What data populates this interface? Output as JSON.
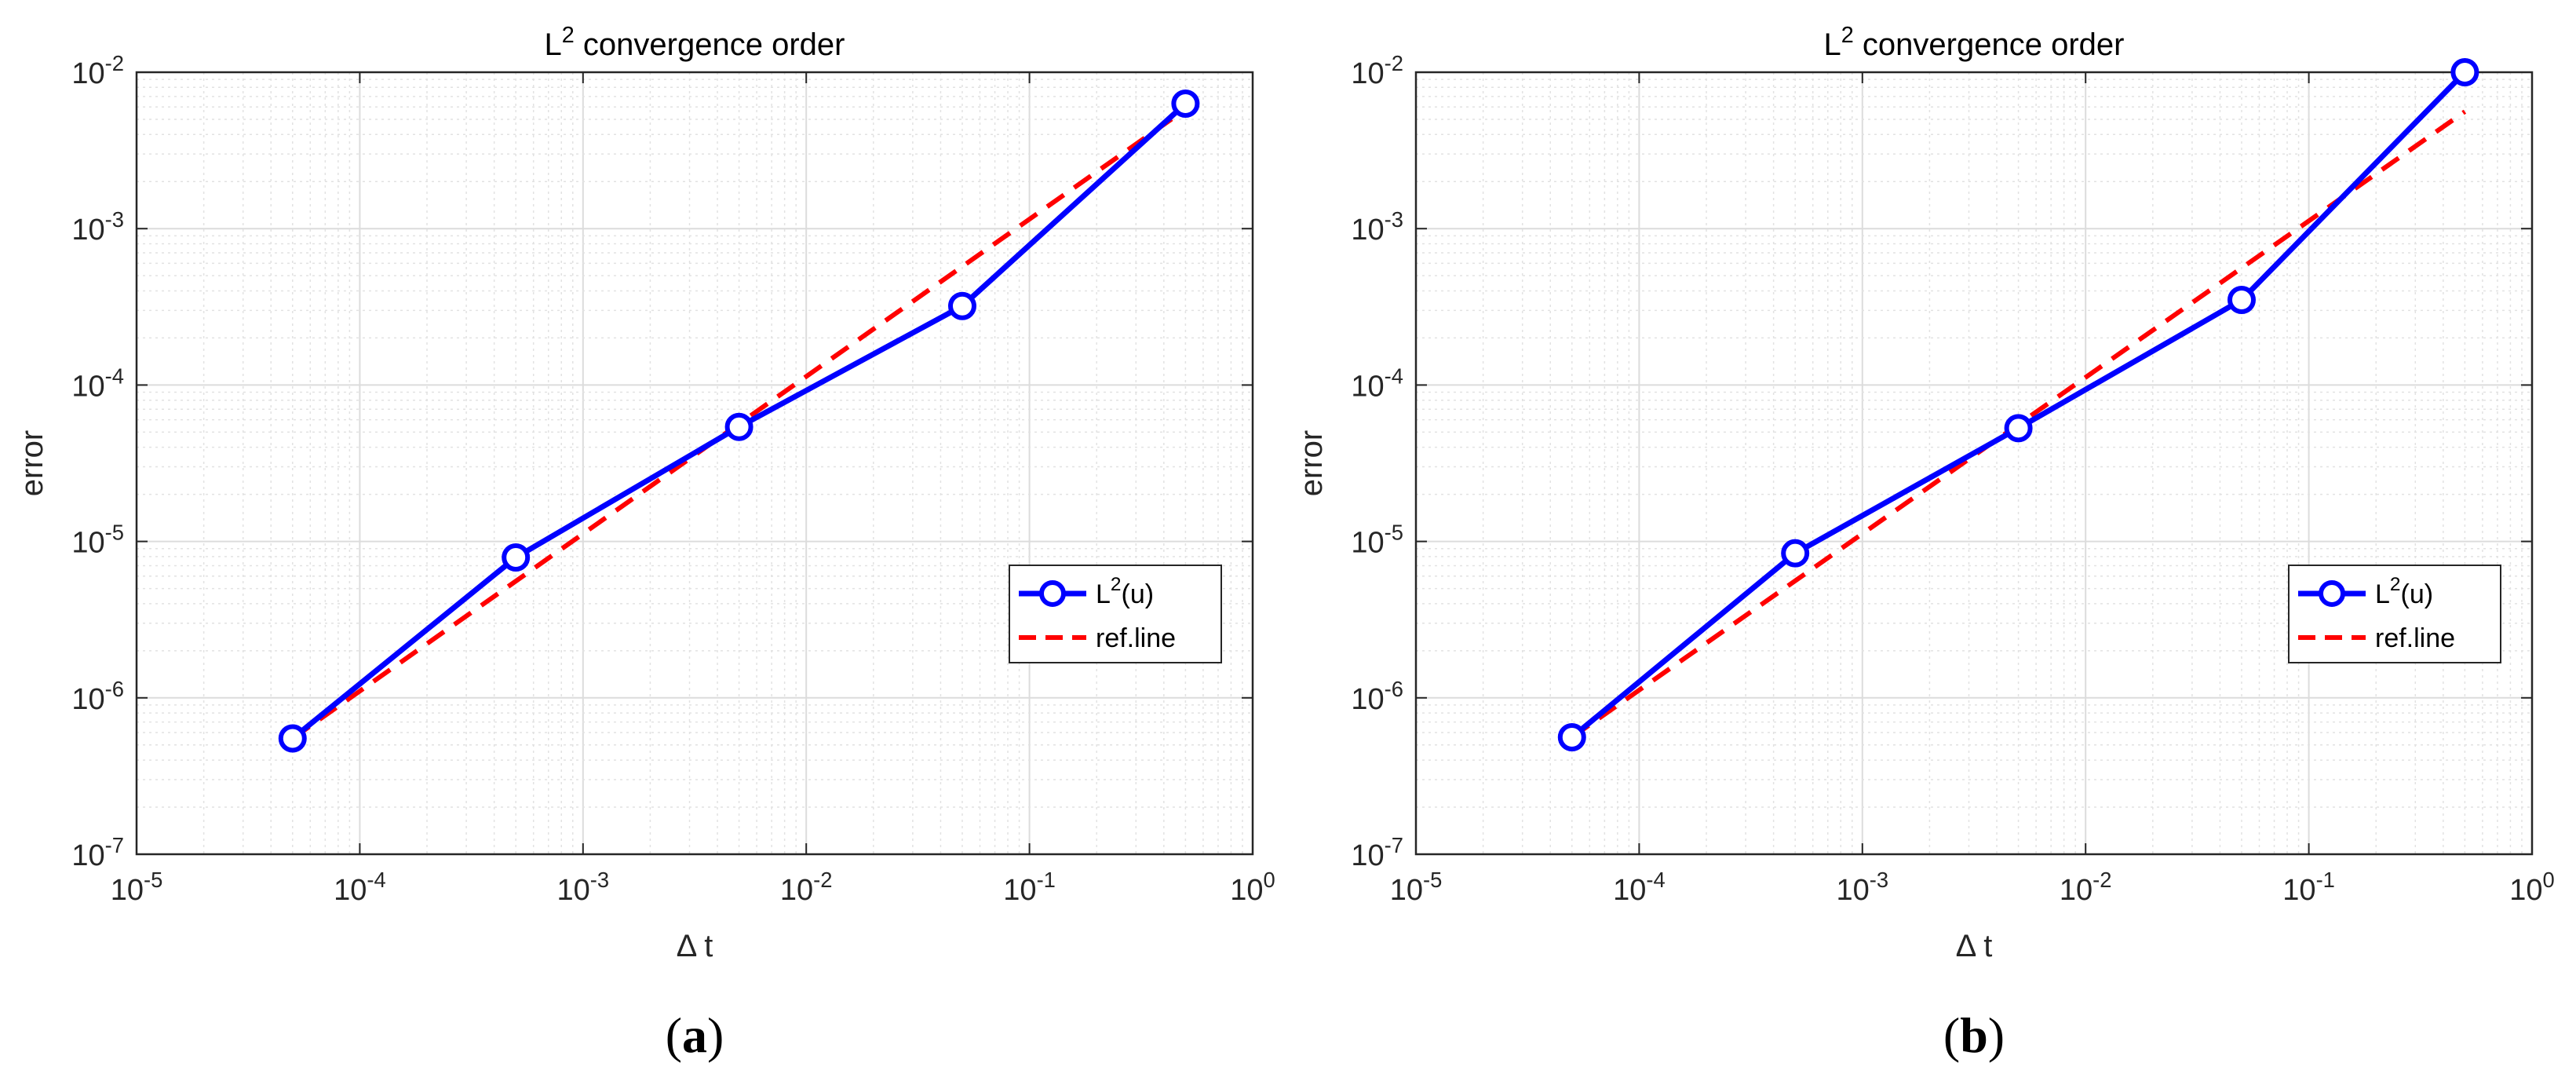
{
  "chart_data": [
    {
      "panel_label": "(a)",
      "type": "line",
      "title_base": "L",
      "title_sup": "2",
      "title_rest": " convergence order",
      "xlabel": "Δ t",
      "ylabel": "error",
      "xscale": "log",
      "yscale": "log",
      "xlim": [
        1e-05,
        1
      ],
      "ylim": [
        1e-07,
        0.01
      ],
      "grid": true,
      "legend_position": "lower-right",
      "xticks": [
        {
          "base": "10",
          "exp": "-5"
        },
        {
          "base": "10",
          "exp": "-4"
        },
        {
          "base": "10",
          "exp": "-3"
        },
        {
          "base": "10",
          "exp": "-2"
        },
        {
          "base": "10",
          "exp": "-1"
        },
        {
          "base": "10",
          "exp": "0"
        }
      ],
      "yticks": [
        {
          "base": "10",
          "exp": "-7"
        },
        {
          "base": "10",
          "exp": "-6"
        },
        {
          "base": "10",
          "exp": "-5"
        },
        {
          "base": "10",
          "exp": "-4"
        },
        {
          "base": "10",
          "exp": "-3"
        },
        {
          "base": "10",
          "exp": "-2"
        }
      ],
      "series": [
        {
          "name_base": "L",
          "name_sup": "2",
          "name_rest": "(u)",
          "color": "#0000ff",
          "style": "solid-circle",
          "x": [
            5e-05,
            0.0005,
            0.005,
            0.05,
            0.5
          ],
          "y": [
            5.5e-07,
            7.9e-06,
            5.4e-05,
            0.00032,
            0.0063
          ]
        },
        {
          "name_base": "ref.line",
          "name_sup": "",
          "name_rest": "",
          "color": "#ff0000",
          "style": "dashed",
          "x": [
            5e-05,
            0.5
          ],
          "y": [
            5.5e-07,
            0.0058
          ]
        }
      ]
    },
    {
      "panel_label": "(b)",
      "type": "line",
      "title_base": "L",
      "title_sup": "2",
      "title_rest": " convergence order",
      "xlabel": "Δ t",
      "ylabel": "error",
      "xscale": "log",
      "yscale": "log",
      "xlim": [
        1e-05,
        1
      ],
      "ylim": [
        1e-07,
        0.01
      ],
      "grid": true,
      "legend_position": "lower-right",
      "xticks": [
        {
          "base": "10",
          "exp": "-5"
        },
        {
          "base": "10",
          "exp": "-4"
        },
        {
          "base": "10",
          "exp": "-3"
        },
        {
          "base": "10",
          "exp": "-2"
        },
        {
          "base": "10",
          "exp": "-1"
        },
        {
          "base": "10",
          "exp": "0"
        }
      ],
      "yticks": [
        {
          "base": "10",
          "exp": "-7"
        },
        {
          "base": "10",
          "exp": "-6"
        },
        {
          "base": "10",
          "exp": "-5"
        },
        {
          "base": "10",
          "exp": "-4"
        },
        {
          "base": "10",
          "exp": "-3"
        },
        {
          "base": "10",
          "exp": "-2"
        }
      ],
      "series": [
        {
          "name_base": "L",
          "name_sup": "2",
          "name_rest": "(u)",
          "color": "#0000ff",
          "style": "solid-circle",
          "x": [
            5e-05,
            0.0005,
            0.005,
            0.05,
            0.5
          ],
          "y": [
            5.6e-07,
            8.4e-06,
            5.3e-05,
            0.00035,
            0.01
          ]
        },
        {
          "name_base": "ref.line",
          "name_sup": "",
          "name_rest": "",
          "color": "#ff0000",
          "style": "dashed",
          "x": [
            5e-05,
            0.5
          ],
          "y": [
            5.6e-07,
            0.0056
          ]
        }
      ]
    }
  ]
}
